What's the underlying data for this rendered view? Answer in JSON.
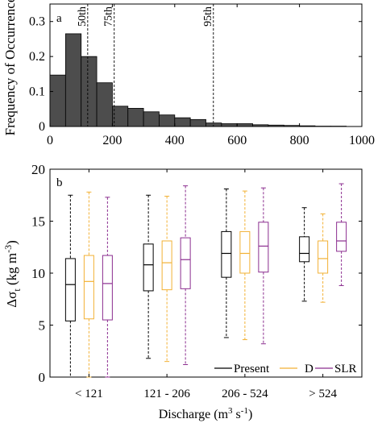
{
  "chart_data": [
    {
      "panel": "a",
      "type": "bar",
      "ylabel": "Frequency of Occurrence",
      "xlim": [
        0,
        1000
      ],
      "ylim": [
        0,
        0.35
      ],
      "xticks": [
        0,
        200,
        400,
        600,
        800,
        1000
      ],
      "xtick_labels": [
        "0",
        "200",
        "400",
        "600",
        "800",
        "1000"
      ],
      "yticks": [
        0,
        0.1,
        0.2,
        0.3
      ],
      "ytick_labels": [
        "0",
        "0.1",
        "0.2",
        "0.3"
      ],
      "bar_color": "#4d4d4d",
      "bins": [
        {
          "x0": 0,
          "x1": 50,
          "value": 0.147
        },
        {
          "x0": 50,
          "x1": 100,
          "value": 0.265
        },
        {
          "x0": 100,
          "x1": 150,
          "value": 0.2
        },
        {
          "x0": 150,
          "x1": 200,
          "value": 0.125
        },
        {
          "x0": 200,
          "x1": 250,
          "value": 0.058
        },
        {
          "x0": 250,
          "x1": 300,
          "value": 0.052
        },
        {
          "x0": 300,
          "x1": 350,
          "value": 0.042
        },
        {
          "x0": 350,
          "x1": 400,
          "value": 0.033
        },
        {
          "x0": 400,
          "x1": 450,
          "value": 0.025
        },
        {
          "x0": 450,
          "x1": 500,
          "value": 0.02
        },
        {
          "x0": 500,
          "x1": 550,
          "value": 0.01
        },
        {
          "x0": 550,
          "x1": 600,
          "value": 0.008
        },
        {
          "x0": 600,
          "x1": 650,
          "value": 0.008
        },
        {
          "x0": 650,
          "x1": 700,
          "value": 0.005
        },
        {
          "x0": 700,
          "x1": 750,
          "value": 0.004
        },
        {
          "x0": 750,
          "x1": 800,
          "value": 0.003
        },
        {
          "x0": 800,
          "x1": 850,
          "value": 0.002
        },
        {
          "x0": 850,
          "x1": 900,
          "value": 0.001
        },
        {
          "x0": 900,
          "x1": 950,
          "value": 0.001
        }
      ],
      "percentiles": [
        {
          "label": "50th",
          "value": 121
        },
        {
          "label": "75th",
          "value": 206
        },
        {
          "label": "95th",
          "value": 524
        }
      ]
    },
    {
      "panel": "b",
      "type": "box",
      "xlabel": "Discharge (m",
      "xlabel_sup1": "3",
      "xlabel_mid": " s",
      "xlabel_sup2": "-1",
      "xlabel_end": ")",
      "ylabel_prefix": "Δσ",
      "ylabel_sub": "t",
      "ylabel_mid": " (kg m",
      "ylabel_sup": "-3",
      "ylabel_end": ")",
      "ylim": [
        0,
        20
      ],
      "yticks": [
        0,
        5,
        10,
        15,
        20
      ],
      "ytick_labels": [
        "0",
        "5",
        "10",
        "15",
        "20"
      ],
      "categories": [
        "< 121",
        "121 - 206",
        "206 - 524",
        "> 524"
      ],
      "series": [
        {
          "name": "Present",
          "color": "#000000",
          "boxes": [
            {
              "whislo": 0.0,
              "q1": 5.4,
              "med": 8.9,
              "q3": 11.4,
              "whishi": 17.5
            },
            {
              "whislo": 1.8,
              "q1": 8.3,
              "med": 10.8,
              "q3": 12.8,
              "whishi": 17.5
            },
            {
              "whislo": 3.8,
              "q1": 9.6,
              "med": 11.9,
              "q3": 14.0,
              "whishi": 18.1
            },
            {
              "whislo": 7.3,
              "q1": 11.1,
              "med": 11.9,
              "q3": 13.5,
              "whishi": 16.3
            }
          ]
        },
        {
          "name": "D",
          "color": "#f2b134",
          "boxes": [
            {
              "whislo": 0.0,
              "q1": 5.6,
              "med": 9.2,
              "q3": 11.7,
              "whishi": 17.8
            },
            {
              "whislo": 1.5,
              "q1": 8.4,
              "med": 11.0,
              "q3": 13.1,
              "whishi": 17.4
            },
            {
              "whislo": 3.6,
              "q1": 10.0,
              "med": 11.9,
              "q3": 14.0,
              "whishi": 17.9
            },
            {
              "whislo": 7.2,
              "q1": 10.0,
              "med": 11.4,
              "q3": 13.1,
              "whishi": 15.7
            }
          ]
        },
        {
          "name": "SLR",
          "color": "#8b2d8f",
          "boxes": [
            {
              "whislo": 0.0,
              "q1": 5.5,
              "med": 9.0,
              "q3": 11.7,
              "whishi": 17.3
            },
            {
              "whislo": 1.2,
              "q1": 8.5,
              "med": 11.3,
              "q3": 13.4,
              "whishi": 18.4
            },
            {
              "whislo": 3.2,
              "q1": 10.1,
              "med": 12.6,
              "q3": 14.9,
              "whishi": 18.2
            },
            {
              "whislo": 8.8,
              "q1": 12.1,
              "med": 13.1,
              "q3": 14.9,
              "whishi": 18.6
            }
          ]
        }
      ],
      "legend_position": "bottom-right"
    }
  ]
}
